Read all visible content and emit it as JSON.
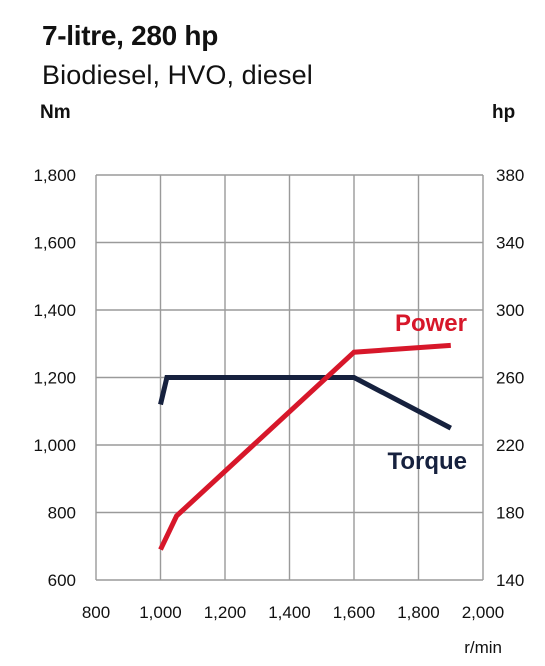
{
  "chart_data": {
    "type": "line",
    "title": "7-litre, 280 hp",
    "subtitle": "Biodiesel, HVO, diesel",
    "y_left_label": "Nm",
    "y_right_label": "hp",
    "xlabel": "r/min",
    "xlim": [
      800,
      2000
    ],
    "ylim_left": [
      600,
      1800
    ],
    "ylim_right": [
      140,
      380
    ],
    "x_ticks": [
      "800",
      "1,000",
      "1,200",
      "1,400",
      "1,600",
      "1,800",
      "2,000"
    ],
    "y_left_ticks": [
      "600",
      "800",
      "1,000",
      "1,200",
      "1,400",
      "1,600",
      "1,800"
    ],
    "y_right_ticks": [
      "140",
      "180",
      "220",
      "260",
      "300",
      "340",
      "380"
    ],
    "grid": true,
    "series": [
      {
        "name": "Torque",
        "axis": "left",
        "color": "#16213e",
        "points": [
          [
            1000,
            1120
          ],
          [
            1020,
            1200
          ],
          [
            1600,
            1200
          ],
          [
            1900,
            1050
          ]
        ]
      },
      {
        "name": "Power",
        "axis": "right",
        "color": "#d7172a",
        "points": [
          [
            1000,
            158
          ],
          [
            1050,
            178
          ],
          [
            1600,
            275
          ],
          [
            1900,
            279
          ]
        ]
      }
    ]
  }
}
